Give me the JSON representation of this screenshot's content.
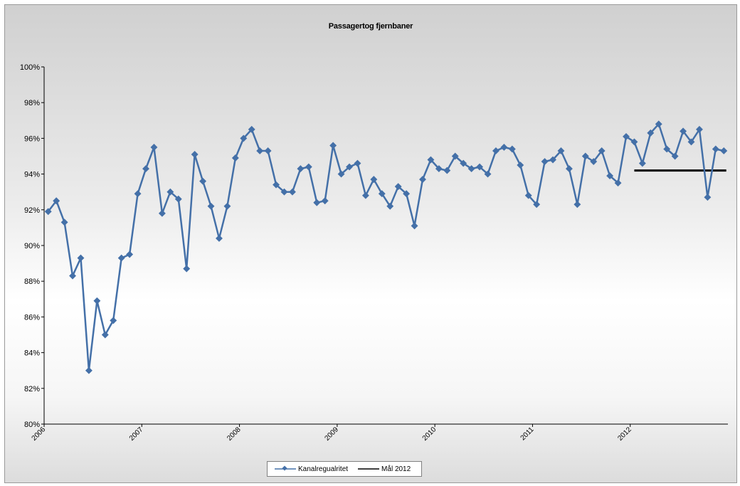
{
  "chart_data": {
    "type": "line",
    "title": "Passagertog fjernbaner",
    "xlabel": "",
    "ylabel": "",
    "ylim": [
      0.8,
      1.0
    ],
    "y_ticks": [
      "80%",
      "82%",
      "84%",
      "86%",
      "88%",
      "90%",
      "92%",
      "94%",
      "96%",
      "98%",
      "100%"
    ],
    "x_tick_labels": [
      "2006",
      "2007",
      "2008",
      "2009",
      "2010",
      "2011",
      "2012"
    ],
    "grid": false,
    "legend_position": "bottom",
    "colors": {
      "series": "#4470a8",
      "target": "#000000"
    },
    "series": [
      {
        "name": "Kanalregualritet",
        "start": "2006-01",
        "interval": "month",
        "values": [
          0.919,
          0.925,
          0.913,
          0.883,
          0.893,
          0.83,
          0.869,
          0.85,
          0.858,
          0.893,
          0.895,
          0.929,
          0.943,
          0.955,
          0.918,
          0.93,
          0.926,
          0.887,
          0.951,
          0.936,
          0.922,
          0.904,
          0.922,
          0.949,
          0.96,
          0.965,
          0.953,
          0.953,
          0.934,
          0.93,
          0.93,
          0.943,
          0.944,
          0.924,
          0.925,
          0.956,
          0.94,
          0.944,
          0.946,
          0.928,
          0.937,
          0.929,
          0.922,
          0.933,
          0.929,
          0.911,
          0.937,
          0.948,
          0.943,
          0.942,
          0.95,
          0.946,
          0.943,
          0.944,
          0.94,
          0.953,
          0.955,
          0.954,
          0.945,
          0.928,
          0.923,
          0.947,
          0.948,
          0.953,
          0.943,
          0.923,
          0.95,
          0.947,
          0.953,
          0.939,
          0.935,
          0.961,
          0.958,
          0.946,
          0.963,
          0.968,
          0.954,
          0.95,
          0.964,
          0.958,
          0.965,
          0.927,
          0.954,
          0.953
        ]
      },
      {
        "name": "Mål 2012",
        "x_range": [
          "2012-01",
          "2012-12"
        ],
        "values": [
          0.942,
          0.942
        ]
      }
    ]
  }
}
